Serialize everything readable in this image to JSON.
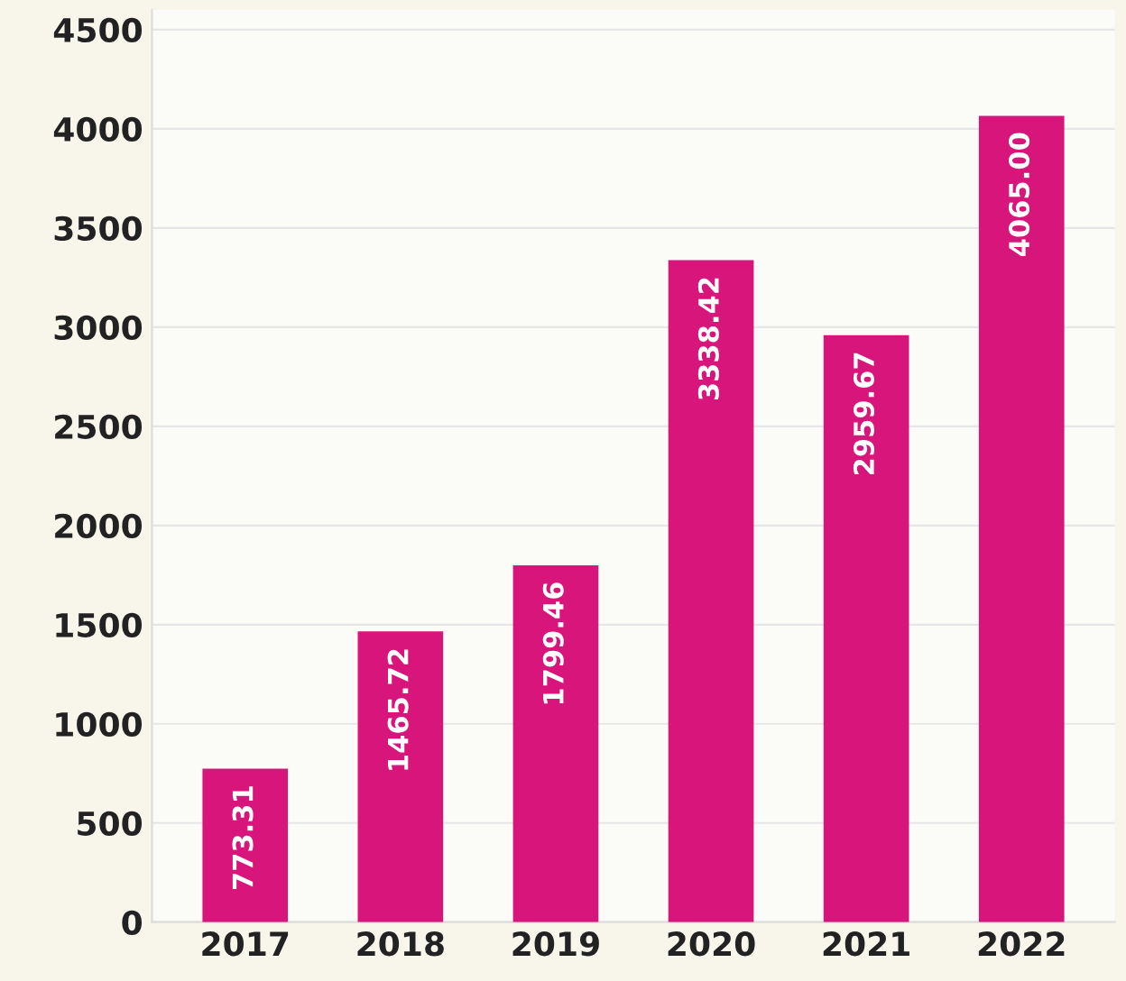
{
  "chart_data": {
    "type": "bar",
    "categories": [
      "2017",
      "2018",
      "2019",
      "2020",
      "2021",
      "2022"
    ],
    "values": [
      773.31,
      1465.72,
      1799.46,
      3338.42,
      2959.67,
      4065.0
    ],
    "value_labels": [
      "773.31",
      "1465.72",
      "1799.46",
      "3338.42",
      "2959.67",
      "4065.00"
    ],
    "color": "#d8157a",
    "ylim": [
      0,
      4600
    ],
    "yticks": [
      0,
      500,
      1000,
      1500,
      2000,
      2500,
      3000,
      3500,
      4000,
      4500
    ],
    "grid": "y"
  }
}
